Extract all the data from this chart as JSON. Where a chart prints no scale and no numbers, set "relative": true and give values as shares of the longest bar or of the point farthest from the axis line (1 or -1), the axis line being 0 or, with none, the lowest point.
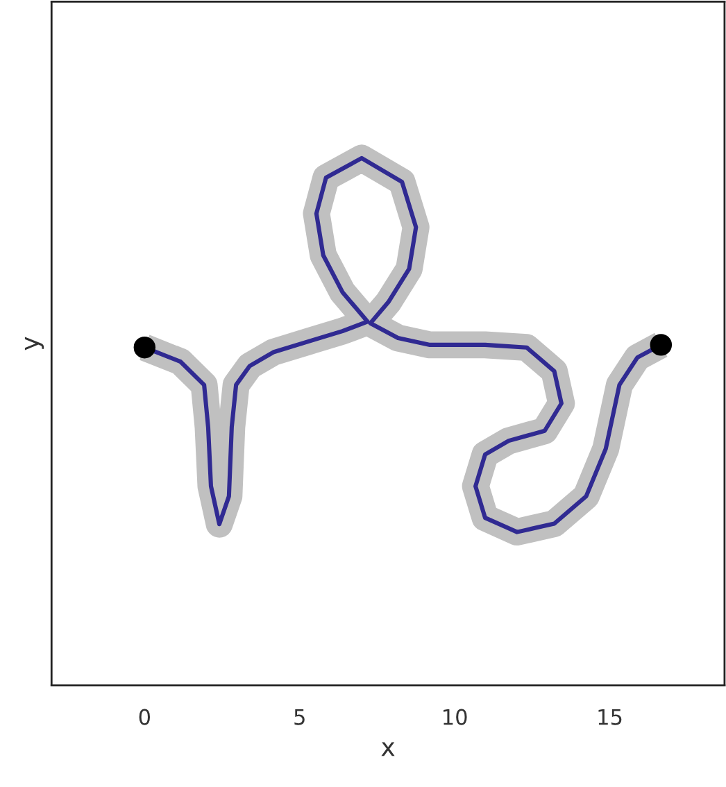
{
  "chart_data": {
    "type": "line",
    "xlabel": "x",
    "ylabel": "y",
    "relative": true,
    "xlim": [
      -3,
      18.7
    ],
    "xticks": [
      0,
      5,
      10,
      15
    ],
    "tick_labels": "x",
    "grid": false,
    "legend": false,
    "x": [
      0.0,
      1.16,
      1.92,
      2.05,
      2.14,
      2.41,
      2.72,
      2.81,
      2.95,
      3.39,
      4.15,
      5.31,
      6.38,
      7.19,
      6.38,
      5.76,
      5.54,
      5.85,
      7.0,
      8.3,
      8.75,
      8.53,
      7.86,
      7.28,
      8.17,
      9.2,
      10.98,
      12.32,
      13.21,
      13.44,
      12.9,
      11.74,
      10.98,
      10.67,
      10.98,
      12.01,
      13.21,
      14.24,
      14.87,
      15.31,
      15.89,
      16.65
    ],
    "series": [
      {
        "color": "#c0c0c0",
        "values": [
          0.641,
          0.614,
          0.57,
          0.49,
          0.378,
          0.306,
          0.359,
          0.49,
          0.57,
          0.606,
          0.632,
          0.653,
          0.672,
          0.69,
          0.746,
          0.816,
          0.895,
          0.963,
          1.0,
          0.955,
          0.869,
          0.79,
          0.727,
          0.687,
          0.659,
          0.646,
          0.646,
          0.641,
          0.596,
          0.535,
          0.483,
          0.464,
          0.438,
          0.378,
          0.318,
          0.291,
          0.307,
          0.359,
          0.449,
          0.57,
          0.622,
          0.646
        ]
      },
      {
        "color": "#302a92",
        "values": [
          0.641,
          0.614,
          0.57,
          0.49,
          0.378,
          0.306,
          0.359,
          0.49,
          0.57,
          0.606,
          0.632,
          0.653,
          0.672,
          0.69,
          0.746,
          0.816,
          0.895,
          0.963,
          1.0,
          0.955,
          0.869,
          0.79,
          0.727,
          0.687,
          0.659,
          0.646,
          0.646,
          0.641,
          0.596,
          0.535,
          0.483,
          0.464,
          0.438,
          0.378,
          0.318,
          0.291,
          0.307,
          0.359,
          0.449,
          0.57,
          0.622,
          0.646
        ]
      },
      {
        "type": "scatter",
        "color": "#000000",
        "x": [
          0.0,
          16.65
        ],
        "values": [
          0.641,
          0.646
        ]
      }
    ]
  }
}
